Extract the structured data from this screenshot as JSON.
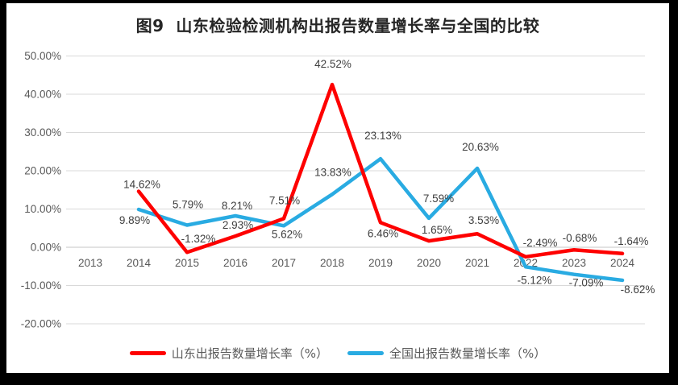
{
  "frame": {
    "border_color": "#000000",
    "background": "#ffffff"
  },
  "chart_data": {
    "type": "line",
    "title": "图9  山东检验检测机构出报告数量增长率与全国的比较",
    "categories": [
      "2013",
      "2014",
      "2015",
      "2016",
      "2017",
      "2018",
      "2019",
      "2020",
      "2021",
      "2022",
      "2023",
      "2024"
    ],
    "series": [
      {
        "name": "山东出报告数量增长率（%）",
        "color": "#FE0000",
        "values": [
          null,
          14.62,
          -1.32,
          2.93,
          7.51,
          42.52,
          6.46,
          1.65,
          3.53,
          -2.49,
          -0.68,
          -1.64
        ]
      },
      {
        "name": "全国出报告数量增长率（%）",
        "color": "#29ABE2",
        "values": [
          null,
          9.89,
          5.79,
          8.21,
          5.62,
          13.83,
          23.13,
          7.59,
          20.63,
          -5.12,
          -7.09,
          -8.62
        ]
      }
    ],
    "y_ticks": [
      50,
      40,
      30,
      20,
      10,
      0,
      -10,
      -20
    ],
    "y_tick_suffix": "%",
    "ylim": [
      -20,
      50
    ],
    "grid": true,
    "legend_position": "bottom",
    "label_format": "percent_2dp",
    "colors": {
      "grid": "#D9D9D9",
      "axis": "#C6C6C6",
      "tick_text": "#595959",
      "label_text": "#3F3F3F",
      "title_text": "#262626"
    }
  }
}
